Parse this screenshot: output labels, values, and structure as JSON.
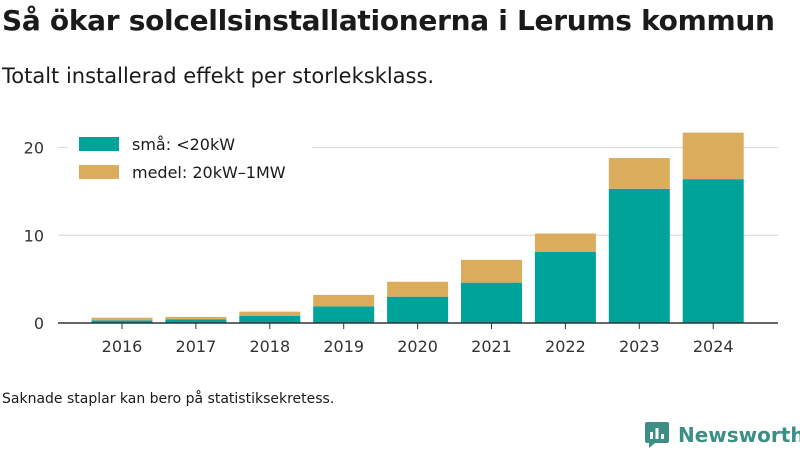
{
  "header": {
    "title": "Så ökar solcellsinstallationerna i Lerums kommun",
    "subtitle": "Totalt installerad effekt per storleksklass."
  },
  "footer": {
    "note": "Saknade staplar kan bero på statistiksekretess.",
    "brand_name": "Newsworthy",
    "brand_icon": "newsworthy-logo-icon"
  },
  "chart_data": {
    "type": "bar",
    "stacked": true,
    "title": "Så ökar solcellsinstallationerna i Lerums kommun",
    "subtitle": "Totalt installerad effekt per storleksklass.",
    "categories": [
      "2016",
      "2017",
      "2018",
      "2019",
      "2020",
      "2021",
      "2022",
      "2023",
      "2024"
    ],
    "series": [
      {
        "name": "små: <20kW",
        "color": "#00a39a",
        "values": [
          0.3,
          0.4,
          0.8,
          1.9,
          3.0,
          4.6,
          8.1,
          15.3,
          16.4
        ]
      },
      {
        "name": "medel: 20kW–1MW",
        "color": "#dbac5b",
        "values": [
          0.3,
          0.3,
          0.5,
          1.3,
          1.7,
          2.6,
          2.1,
          3.5,
          5.3
        ]
      }
    ],
    "yticks": [
      0,
      10,
      20
    ],
    "ylim": [
      0,
      22
    ],
    "grid": true,
    "legend_position": "top-left",
    "xlabel": "",
    "ylabel": ""
  }
}
